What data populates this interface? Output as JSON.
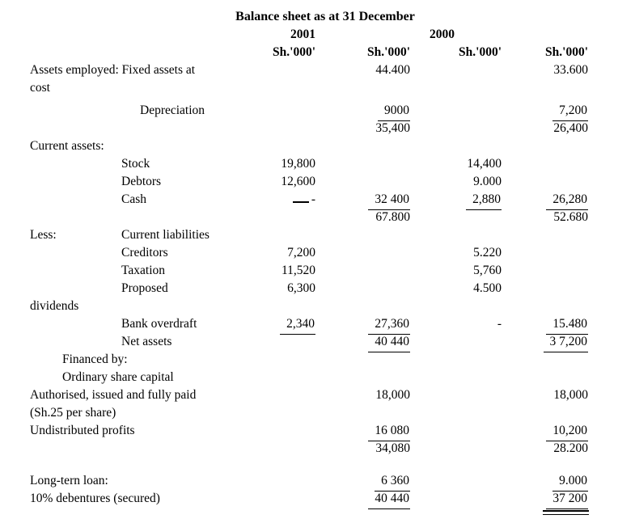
{
  "title": "Balance sheet as at 31 December",
  "headers": {
    "year_2001": "2001",
    "year_2000": "2000",
    "unit": "Sh.'000'"
  },
  "table": {
    "rows": [
      {
        "label": "Assets employed: Fixed assets at",
        "indent": 0,
        "cells": [
          null,
          "44.400",
          null,
          "33.600"
        ]
      },
      {
        "label": "cost",
        "indent": 0
      },
      {
        "label": "Depreciation",
        "indent": 3,
        "gap_before": 6,
        "cells": [
          null,
          {
            "v": "9000",
            "u": true
          },
          null,
          {
            "v": "7,200",
            "u": true
          }
        ]
      },
      {
        "cells": [
          null,
          "35,400",
          null,
          "26,400"
        ]
      },
      {
        "label": "Current assets:",
        "indent": 0
      },
      {
        "label": "Stock",
        "indent": 2,
        "cells": [
          "19,800",
          null,
          "14,400",
          null
        ]
      },
      {
        "label": "Debtors",
        "indent": 2,
        "cells": [
          "12,600",
          null,
          "9.000",
          null
        ]
      },
      {
        "label": "Cash",
        "indent": 2,
        "cells": [
          {
            "v": "-",
            "type": "dashline"
          },
          {
            "v": "32 400",
            "u": true
          },
          {
            "v": "2,880",
            "u": true
          },
          {
            "v": "26,280",
            "u": true
          }
        ]
      },
      {
        "cells": [
          null,
          "67.800",
          null,
          "52.680"
        ]
      },
      {
        "label": "Less:",
        "label2": "Current liabilities",
        "indent": 0
      },
      {
        "label": "Creditors",
        "indent": 2,
        "cells": [
          "7,200",
          null,
          "5.220",
          null
        ]
      },
      {
        "label": "Taxation",
        "indent": 2,
        "cells": [
          "11,520",
          null,
          "5,760",
          null
        ]
      },
      {
        "label": "Proposed",
        "indent": 2,
        "cells": [
          "6,300",
          null,
          "4.500",
          null
        ]
      },
      {
        "label": "dividends",
        "indent": 0
      },
      {
        "label": "Bank overdraft",
        "indent": 2,
        "cells": [
          {
            "v": "2,340",
            "u": true
          },
          {
            "v": "27,360",
            "u": true
          },
          "-",
          {
            "v": "15.480",
            "u": true
          }
        ]
      },
      {
        "label": "Net assets",
        "indent": 2,
        "cells": [
          null,
          {
            "v": "40 440",
            "u": true
          },
          null,
          {
            "v": "3 7,200",
            "u": true
          }
        ]
      },
      {
        "label": "Financed by:",
        "indent": 1
      },
      {
        "label": "Ordinary share capital",
        "indent": 1
      },
      {
        "label": "Authorised, issued and fully paid",
        "indent": 0,
        "cells": [
          null,
          "18,000",
          null,
          "18,000"
        ]
      },
      {
        "label": "(Sh.25 per share)",
        "indent": 0
      },
      {
        "label": "Undistributed profits",
        "indent": 0,
        "cells": [
          null,
          {
            "v": "16 080",
            "u": true
          },
          null,
          {
            "v": "10,200",
            "u": true
          }
        ]
      },
      {
        "cells": [
          null,
          "34,080",
          null,
          "28.200"
        ]
      },
      {
        "label": "Long-tern loan:",
        "indent": 0,
        "gap_before": 18,
        "cells": [
          null,
          {
            "v": "6 360",
            "u": true
          },
          null,
          {
            "v": "9.000",
            "u": true
          }
        ]
      },
      {
        "label": "10% debentures (secured)",
        "indent": 0,
        "cells": [
          null,
          {
            "v": "40 440",
            "u": true
          },
          null,
          {
            "v": "37 200",
            "u": true,
            "dd": true
          }
        ]
      }
    ]
  }
}
